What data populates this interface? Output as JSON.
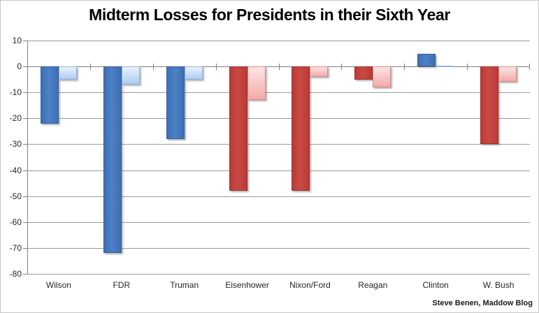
{
  "title": "Midterm Losses for Presidents in their Sixth Year",
  "attribution": "Steve Benen, Maddow Blog",
  "chart_data": {
    "type": "bar",
    "title": "Midterm Losses for Presidents in their Sixth Year",
    "categories": [
      "Wilson",
      "FDR",
      "Truman",
      "Eisenhower",
      "Nixon/Ford",
      "Reagan",
      "Clinton",
      "W. Bush"
    ],
    "series": [
      {
        "shade": "dark",
        "values": [
          -22,
          -72,
          -28,
          -48,
          -48,
          -5,
          5,
          -30
        ]
      },
      {
        "shade": "light",
        "values": [
          -5,
          -7,
          -5,
          -13,
          -4,
          -8,
          0,
          -6
        ]
      }
    ],
    "bar_colors": [
      "blue",
      "blue",
      "blue",
      "red",
      "red",
      "red",
      "blue",
      "red"
    ],
    "yticks": [
      10,
      0,
      -10,
      -20,
      -30,
      -40,
      -50,
      -60,
      -70,
      -80
    ],
    "ylim": [
      -80,
      10
    ],
    "grid": true,
    "legend": "none",
    "colors": {
      "dark_blue": "#3e6fb5",
      "dark_blue_hi": "#4e80c6",
      "dark_blue_edge": "#315f9f",
      "light_blue_top": "#eaf2fd",
      "light_blue_bottom": "#adccf0",
      "light_blue_edge": "#8fb4e2",
      "dark_red": "#bc3a36",
      "dark_red_hi": "#c94944",
      "dark_red_edge": "#9e312e",
      "light_red_top": "#fbe4e4",
      "light_red_bottom": "#f2aba9",
      "light_red_edge": "#db8a88",
      "gridline": "#9b9b9b",
      "axis": "#7f7f7f"
    }
  }
}
